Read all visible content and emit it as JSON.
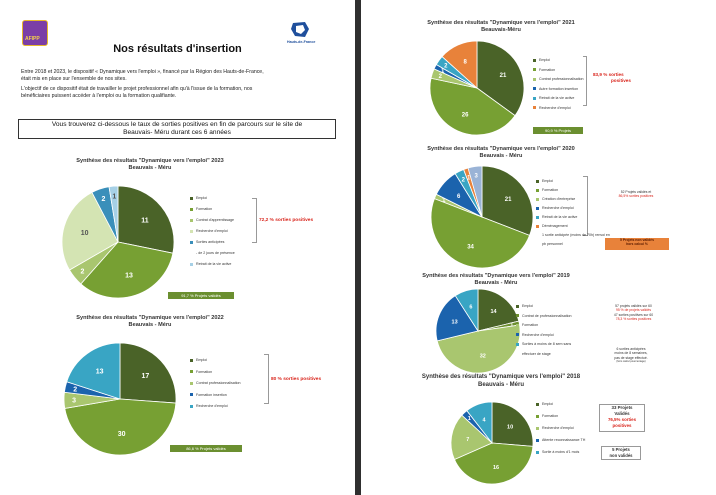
{
  "page1": {
    "logo_left": "AFIPP",
    "logo_right": "Hauts-de-France",
    "title": "Nos résultats d'insertion",
    "intro": [
      "Entre 2018 et 2023, le dispositif « Dynamique vers l'emploi », financé par la Région des Hauts-de-France,",
      "était mis en place sur l'ensemble de nos sites.",
      "L'objectif de ce dispositif était de travailler le projet professionnel afin qu'à l'issue de la formation, nos",
      "bénéficiaires puissent accéder à l'emploi ou la formation qualifiante."
    ],
    "highlight": [
      "Vous trouverez ci-dessous le taux de sorties positives en fin de parcours sur le site de",
      "Beauvais- Méru durant ces 6 années"
    ]
  },
  "c2023": {
    "title": "Synthèse des résultats \"Dynamique vers l'emploi\" 2023",
    "subtitle": "Beauvais - Méru",
    "legend": [
      "Emploi",
      "Formation",
      "Contrat d'apprentissage",
      "Recherche d'emploi",
      "Sorties anticipées",
      "- de 2 jours de présence",
      "Retrait de la vie active"
    ],
    "side": "72,2 %  sorties positives",
    "pill": "91,7 %  Projets validés"
  },
  "c2022": {
    "title": "Synthèse des résultats \"Dynamique vers l'emploi\" 2022",
    "subtitle": "Beauvais - Méru",
    "legend": [
      "Emploi",
      "Formation",
      "Contrat professionnalisation",
      "Formation insertion",
      "Recherche d'emploi"
    ],
    "side": "80 %  sorties positives",
    "pill": "86,6 %  Projets validés"
  },
  "c2021": {
    "title": "Synthèse des résultats \"Dynamique vers l'emploi\" 2021",
    "subtitle": "Beauvais-Méru",
    "legend": [
      "Emploi",
      "Formation",
      "Contrat professionnalisation",
      "Autre formation insertion",
      "Retrait de la vie active",
      "Recherche d'emploi"
    ],
    "side": [
      "83,9 %  sorties",
      "positives"
    ],
    "pill": "90,9 %  Projets"
  },
  "c2020": {
    "title": "Synthèse des résultats \"Dynamique vers l'emploi\" 2020",
    "subtitle": "Beauvais - Méru",
    "legend": [
      "Emploi",
      "Formation",
      "Création d'entreprise",
      "Recherche d'emploi",
      "Retrait de la vie active",
      "Déménagement",
      "1 sortie anticipée (moins de 70h) renvoi en",
      "pb personnel"
    ],
    "box1": [
      "52 Projets validés et",
      "86,5% sorties positives"
    ],
    "box2": [
      "5 Projets  non validés",
      "hors calcul %"
    ]
  },
  "c2019": {
    "title": "Synthèse des résultats \"Dynamique vers l'emploi\" 2019",
    "subtitle": "Beauvais - Méru",
    "legend": [
      "Emploi",
      "Contrat de professionnalisation",
      "Formation",
      "Recherche d'emploi",
      "Sorties à moins de 8 sem sans",
      "effectuer de stage"
    ],
    "box1": [
      "57 projets validés sur 60",
      "95 % de projets validés",
      "47 sorties positives sur 60",
      "78,3 % sorties positives"
    ],
    "box2": [
      "6 sorties anticipées",
      "moins de 8 semaines,",
      "pas de stage effectué.",
      "(hors calcul pourcentage)"
    ]
  },
  "c2018": {
    "title": "Synthèse des résultats \"Dynamique vers l'emploi\" 2018",
    "subtitle": "Beauvais - Méru",
    "legend": [
      "Emploi",
      "Formation",
      "Recherche d'emploi",
      "Attente reconnaissance TH",
      "Sortie à moins d'1 mois"
    ],
    "box1": [
      "33 Projets",
      "Validés",
      "76,5%  sorties",
      "positives"
    ],
    "box2": [
      "5 Projets",
      "non validés"
    ]
  },
  "chart_data": [
    {
      "type": "pie",
      "title": "Synthèse des résultats \"Dynamique vers l'emploi\" 2023",
      "categories": [
        "Emploi",
        "Formation",
        "Contrat d'apprentissage",
        "Recherche d'emploi",
        "Sorties anticipées",
        "Retrait de la vie active"
      ],
      "values": [
        11,
        13,
        2,
        10,
        2,
        1
      ],
      "colors": [
        "#4a6328",
        "#77a033",
        "#a9c66f",
        "#d4e4b3",
        "#3a8fba",
        "#a6d0e6"
      ]
    },
    {
      "type": "pie",
      "title": "Synthèse des résultats \"Dynamique vers l'emploi\" 2022",
      "categories": [
        "Emploi",
        "Formation",
        "Contrat professionnalisation",
        "Formation insertion",
        "Recherche d'emploi"
      ],
      "values": [
        17,
        30,
        3,
        2,
        13
      ],
      "colors": [
        "#4a6328",
        "#77a033",
        "#a9c66f",
        "#1b63ad",
        "#39a5c4"
      ]
    },
    {
      "type": "pie",
      "title": "Synthèse des résultats \"Dynamique vers l'emploi\" 2021",
      "categories": [
        "Emploi",
        "Formation",
        "Contrat professionnalisation",
        "Autre formation insertion",
        "Retrait de la vie active",
        "Recherche d'emploi"
      ],
      "values": [
        21,
        26,
        2,
        1,
        2,
        8
      ],
      "colors": [
        "#4a6328",
        "#77a033",
        "#a9c66f",
        "#1b63ad",
        "#39a5c4",
        "#e8823a"
      ]
    },
    {
      "type": "pie",
      "title": "Synthèse des résultats \"Dynamique vers l'emploi\" 2020",
      "categories": [
        "Emploi",
        "Formation",
        "Création d'entreprise",
        "Recherche d'emploi",
        "Retrait de la vie active",
        "Déménagement",
        "Sortie anticipée"
      ],
      "values": [
        21,
        34,
        1,
        6,
        2,
        1,
        3
      ],
      "colors": [
        "#4a6328",
        "#77a033",
        "#a9c66f",
        "#1b63ad",
        "#39a5c4",
        "#e8823a",
        "#9ab3d6"
      ]
    },
    {
      "type": "pie",
      "title": "Synthèse des résultats \"Dynamique vers l'emploi\" 2019",
      "categories": [
        "Emploi",
        "Contrat de professionnalisation",
        "Formation",
        "Recherche d'emploi",
        "Sorties à moins de 8 sem sans effectuer de stage"
      ],
      "values": [
        14,
        1,
        32,
        13,
        6
      ],
      "colors": [
        "#4a6328",
        "#6c8e2f",
        "#a9c66f",
        "#1b63ad",
        "#39a5c4"
      ]
    },
    {
      "type": "pie",
      "title": "Synthèse des résultats \"Dynamique vers l'emploi\" 2018",
      "categories": [
        "Emploi",
        "Formation",
        "Recherche d'emploi",
        "Attente reconnaissance TH",
        "Sortie à moins d'1 mois"
      ],
      "values": [
        10,
        16,
        7,
        1,
        4
      ],
      "colors": [
        "#4a6328",
        "#77a033",
        "#a9c66f",
        "#1b63ad",
        "#39a5c4"
      ]
    }
  ]
}
